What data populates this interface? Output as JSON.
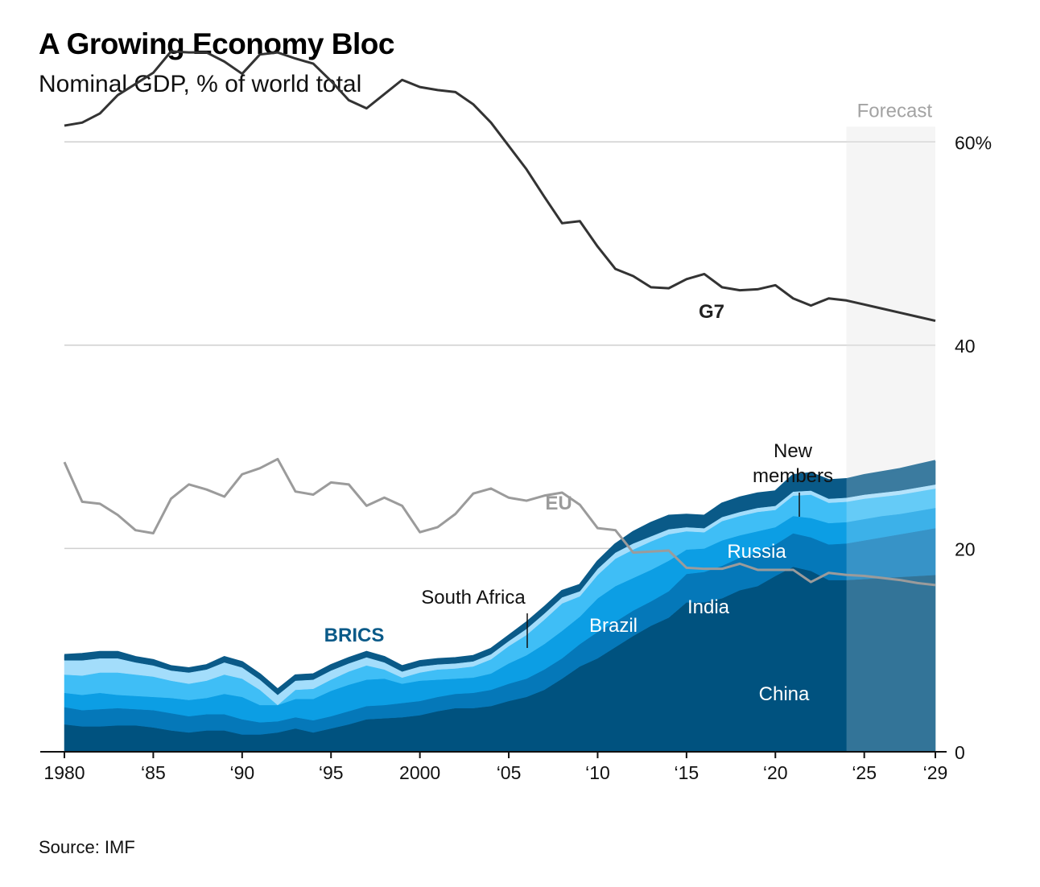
{
  "title": "A Growing Economy Bloc",
  "subtitle": "Nominal GDP, % of world total",
  "source": "Source: IMF",
  "forecast_label": "Forecast",
  "annotations": {
    "g7": "G7",
    "eu": "EU",
    "brics": "BRICS",
    "china": "China",
    "india": "India",
    "brazil": "Brazil",
    "russia": "Russia",
    "south_africa": "South Africa",
    "new_members_1": "New",
    "new_members_2": "members"
  },
  "colors": {
    "china": "#00527f",
    "india": "#0578b9",
    "brazil": "#0c9ee4",
    "russia": "#3fbef6",
    "south_africa": "#a3ddfb",
    "new_members": "#0a5a88",
    "g7": "#333333",
    "eu": "#9b9b9b",
    "brics_label": "#0a5a88",
    "forecast_shade": "#f3f3f3"
  },
  "chart_data": {
    "type": "area",
    "x": [
      1980,
      1981,
      1982,
      1983,
      1984,
      1985,
      1986,
      1987,
      1988,
      1989,
      1990,
      1991,
      1992,
      1993,
      1994,
      1995,
      1996,
      1997,
      1998,
      1999,
      2000,
      2001,
      2002,
      2003,
      2004,
      2005,
      2006,
      2007,
      2008,
      2009,
      2010,
      2011,
      2012,
      2013,
      2014,
      2015,
      2016,
      2017,
      2018,
      2019,
      2020,
      2021,
      2022,
      2023,
      2024,
      2025,
      2026,
      2027,
      2028,
      2029
    ],
    "x_tick_labels": [
      "1980",
      "‘85",
      "‘90",
      "‘95",
      "2000",
      "‘05",
      "‘10",
      "‘15",
      "‘20",
      "‘25",
      "‘29"
    ],
    "y_tick_labels": [
      "0",
      "20",
      "40",
      "60%"
    ],
    "ylim": [
      0,
      70
    ],
    "forecast_start": 2024,
    "series": [
      {
        "name": "China",
        "values": [
          2.7,
          2.5,
          2.5,
          2.6,
          2.6,
          2.4,
          2.1,
          1.9,
          2.1,
          2.1,
          1.7,
          1.7,
          1.9,
          2.3,
          1.9,
          2.3,
          2.7,
          3.2,
          3.3,
          3.4,
          3.6,
          4.0,
          4.3,
          4.3,
          4.5,
          5.0,
          5.4,
          6.1,
          7.2,
          8.4,
          9.2,
          10.3,
          11.4,
          12.4,
          13.2,
          14.7,
          14.7,
          15.1,
          15.9,
          16.3,
          17.3,
          18.2,
          17.8,
          16.9,
          16.9,
          17.0,
          17.1,
          17.2,
          17.3,
          17.4
        ]
      },
      {
        "name": "India",
        "values": [
          1.7,
          1.6,
          1.7,
          1.7,
          1.6,
          1.7,
          1.7,
          1.6,
          1.6,
          1.6,
          1.5,
          1.2,
          1.1,
          1.1,
          1.2,
          1.2,
          1.3,
          1.3,
          1.3,
          1.4,
          1.4,
          1.4,
          1.4,
          1.5,
          1.6,
          1.7,
          1.8,
          2.0,
          2.0,
          2.2,
          2.6,
          2.5,
          2.5,
          2.4,
          2.6,
          2.8,
          3.0,
          3.2,
          3.2,
          3.3,
          3.1,
          3.3,
          3.3,
          3.5,
          3.6,
          3.8,
          4.0,
          4.2,
          4.4,
          4.6
        ]
      },
      {
        "name": "Brazil",
        "values": [
          1.4,
          1.5,
          1.6,
          1.3,
          1.3,
          1.3,
          1.5,
          1.6,
          1.6,
          2.0,
          2.2,
          1.7,
          1.6,
          1.8,
          2.1,
          2.5,
          2.6,
          2.6,
          2.6,
          1.9,
          2.0,
          1.7,
          1.5,
          1.5,
          1.6,
          2.0,
          2.3,
          2.5,
          2.7,
          2.7,
          3.3,
          3.5,
          3.2,
          3.1,
          3.0,
          2.4,
          2.3,
          2.5,
          2.2,
          2.1,
          1.7,
          1.7,
          1.9,
          2.1,
          2.1,
          2.1,
          2.1,
          2.0,
          2.0,
          2.0
        ]
      },
      {
        "name": "Russia",
        "values": [
          1.8,
          1.9,
          2.0,
          2.2,
          2.1,
          2.0,
          1.7,
          1.6,
          1.7,
          1.9,
          1.8,
          1.5,
          0.0,
          0.9,
          1.0,
          1.1,
          1.3,
          1.4,
          0.9,
          0.6,
          0.8,
          1.0,
          1.0,
          1.1,
          1.4,
          1.7,
          2.0,
          2.4,
          2.7,
          2.0,
          2.3,
          2.7,
          2.8,
          2.8,
          2.6,
          1.8,
          1.6,
          1.9,
          1.9,
          1.9,
          1.7,
          2.0,
          2.3,
          2.0,
          2.0,
          2.0,
          1.9,
          1.9,
          1.9,
          1.9
        ]
      },
      {
        "name": "South Africa",
        "values": [
          1.4,
          1.5,
          1.4,
          1.4,
          1.2,
          1.1,
          1.0,
          1.1,
          1.1,
          1.2,
          1.1,
          1.0,
          1.0,
          0.9,
          0.9,
          0.9,
          0.8,
          0.8,
          0.7,
          0.6,
          0.6,
          0.5,
          0.5,
          0.5,
          0.5,
          0.5,
          0.6,
          0.6,
          0.6,
          0.5,
          0.6,
          0.6,
          0.6,
          0.5,
          0.5,
          0.4,
          0.4,
          0.4,
          0.4,
          0.4,
          0.4,
          0.4,
          0.4,
          0.4,
          0.4,
          0.4,
          0.4,
          0.4,
          0.4,
          0.4
        ]
      },
      {
        "name": "New members",
        "values": [
          0.5,
          0.6,
          0.6,
          0.6,
          0.5,
          0.5,
          0.4,
          0.4,
          0.4,
          0.5,
          0.5,
          0.5,
          0.5,
          0.5,
          0.5,
          0.5,
          0.5,
          0.5,
          0.5,
          0.5,
          0.5,
          0.5,
          0.5,
          0.5,
          0.5,
          0.5,
          0.6,
          0.6,
          0.6,
          0.6,
          0.7,
          0.8,
          1.1,
          1.3,
          1.3,
          1.2,
          1.2,
          1.3,
          1.4,
          1.4,
          1.4,
          1.6,
          1.7,
          1.8,
          1.8,
          1.9,
          2.0,
          2.1,
          2.2,
          2.3
        ]
      },
      {
        "name": "G7",
        "values": [
          61.6,
          61.9,
          62.8,
          64.6,
          65.7,
          66.8,
          68.9,
          68.8,
          68.8,
          67.9,
          66.7,
          68.6,
          68.8,
          68.2,
          67.7,
          66.0,
          64.1,
          63.3,
          64.7,
          66.1,
          65.4,
          65.1,
          64.9,
          63.7,
          61.9,
          59.6,
          57.3,
          54.6,
          52.0,
          52.2,
          49.7,
          47.5,
          46.8,
          45.7,
          45.6,
          46.5,
          47.0,
          45.7,
          45.4,
          45.5,
          45.9,
          44.6,
          43.9,
          44.6,
          44.4,
          44.0,
          43.6,
          43.2,
          42.8,
          42.4
        ]
      },
      {
        "name": "EU",
        "values": [
          28.5,
          24.6,
          24.4,
          23.3,
          21.8,
          21.5,
          24.9,
          26.3,
          25.8,
          25.1,
          27.3,
          27.9,
          28.8,
          25.6,
          25.3,
          26.5,
          26.3,
          24.2,
          25.0,
          24.2,
          21.6,
          22.1,
          23.4,
          25.4,
          25.9,
          25.0,
          24.7,
          25.2,
          25.5,
          24.3,
          22.0,
          21.8,
          19.6,
          19.7,
          19.8,
          18.1,
          18.0,
          18.0,
          18.5,
          17.9,
          17.9,
          17.9,
          16.7,
          17.6,
          17.4,
          17.3,
          17.1,
          16.9,
          16.6,
          16.4
        ]
      }
    ]
  }
}
